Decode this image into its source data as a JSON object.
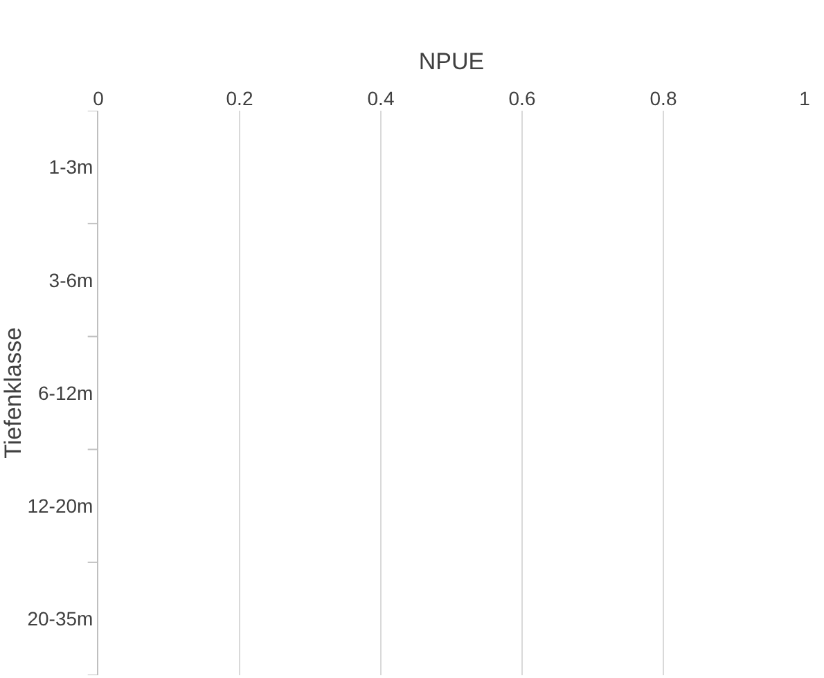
{
  "chart_data": {
    "type": "bar",
    "orientation": "horizontal",
    "xlabel": "NPUE",
    "ylabel": "Tiefenklasse",
    "categories": [
      "1-3m",
      "3-6m",
      "6-12m",
      "12-20m",
      "20-35m"
    ],
    "values": [
      null,
      null,
      null,
      null,
      null
    ],
    "xlim": [
      0,
      1
    ],
    "xticks": [
      0,
      {
        "value": 0.2,
        "label": "0.2"
      },
      {
        "value": 0.4,
        "label": "0.4"
      },
      {
        "value": 0.6,
        "label": "0.6"
      },
      {
        "value": 0.8,
        "label": "0.8"
      },
      1
    ],
    "grid": "x"
  }
}
